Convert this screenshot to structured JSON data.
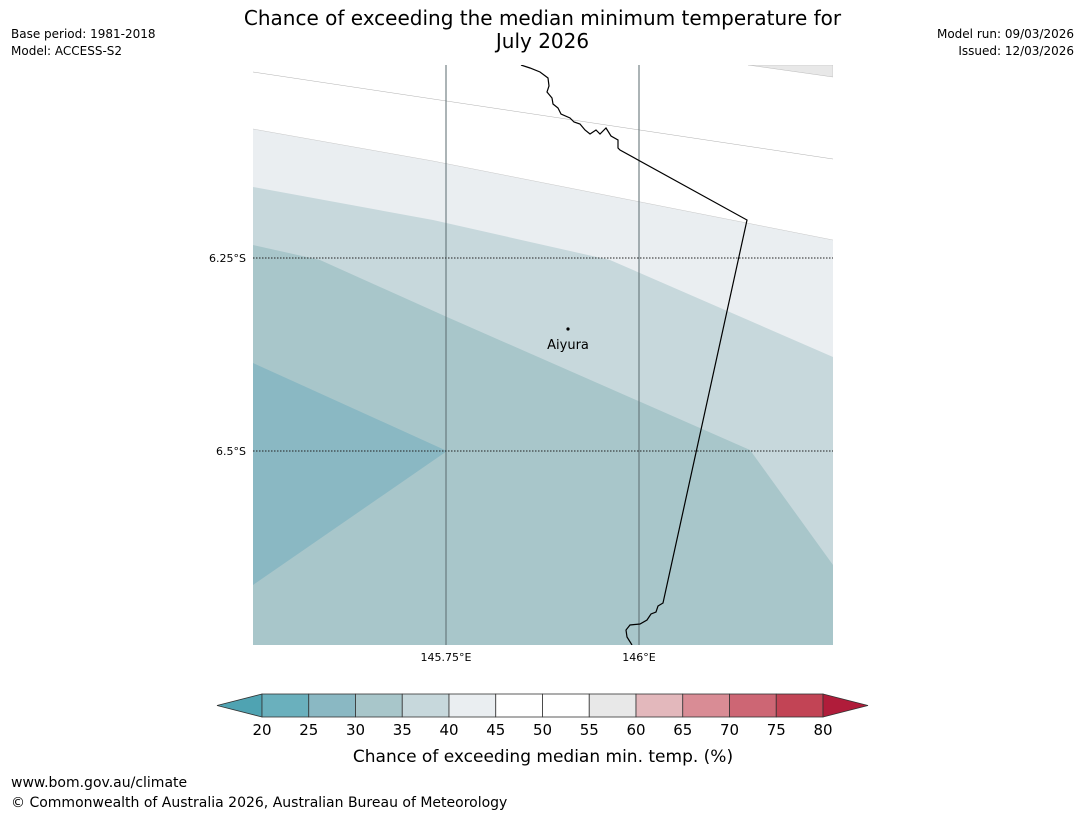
{
  "header": {
    "title_line1": "Chance of exceeding the median minimum temperature for",
    "title_line2": "July 2026",
    "base_period": "Base period: 1981-2018",
    "model": "Model: ACCESS-S2",
    "model_run": "Model run: 09/03/2026",
    "issued": "Issued: 12/03/2026"
  },
  "map": {
    "lat_labels": [
      "6.25°S",
      "6.5°S"
    ],
    "lon_labels": [
      "145.75°E",
      "146°E"
    ],
    "place": "Aiyura",
    "colors": {
      "band_lightest": "#eaeef1",
      "band_light": "#c7d8dc",
      "band_mid": "#a8c6ca",
      "band_dark": "#8ab8c3"
    }
  },
  "legend": {
    "ticks": [
      "20",
      "25",
      "30",
      "35",
      "40",
      "45",
      "50",
      "55",
      "60",
      "65",
      "70",
      "75",
      "80"
    ],
    "label": "Chance of exceeding median min. temp. (%)",
    "colors": [
      "#6ab0bd",
      "#8ab8c3",
      "#a8c6ca",
      "#c7d8dc",
      "#eaeef1",
      "#ffffff",
      "#ffffff",
      "#e8e8e8",
      "#e3b8bc",
      "#d98c95",
      "#cd6674",
      "#c24455"
    ],
    "low_color": "#4fa3b2",
    "high_color": "#b01c3a"
  },
  "footer": {
    "url": "www.bom.gov.au/climate",
    "copyright": "© Commonwealth of Australia 2026, Australian Bureau of Meteorology"
  }
}
